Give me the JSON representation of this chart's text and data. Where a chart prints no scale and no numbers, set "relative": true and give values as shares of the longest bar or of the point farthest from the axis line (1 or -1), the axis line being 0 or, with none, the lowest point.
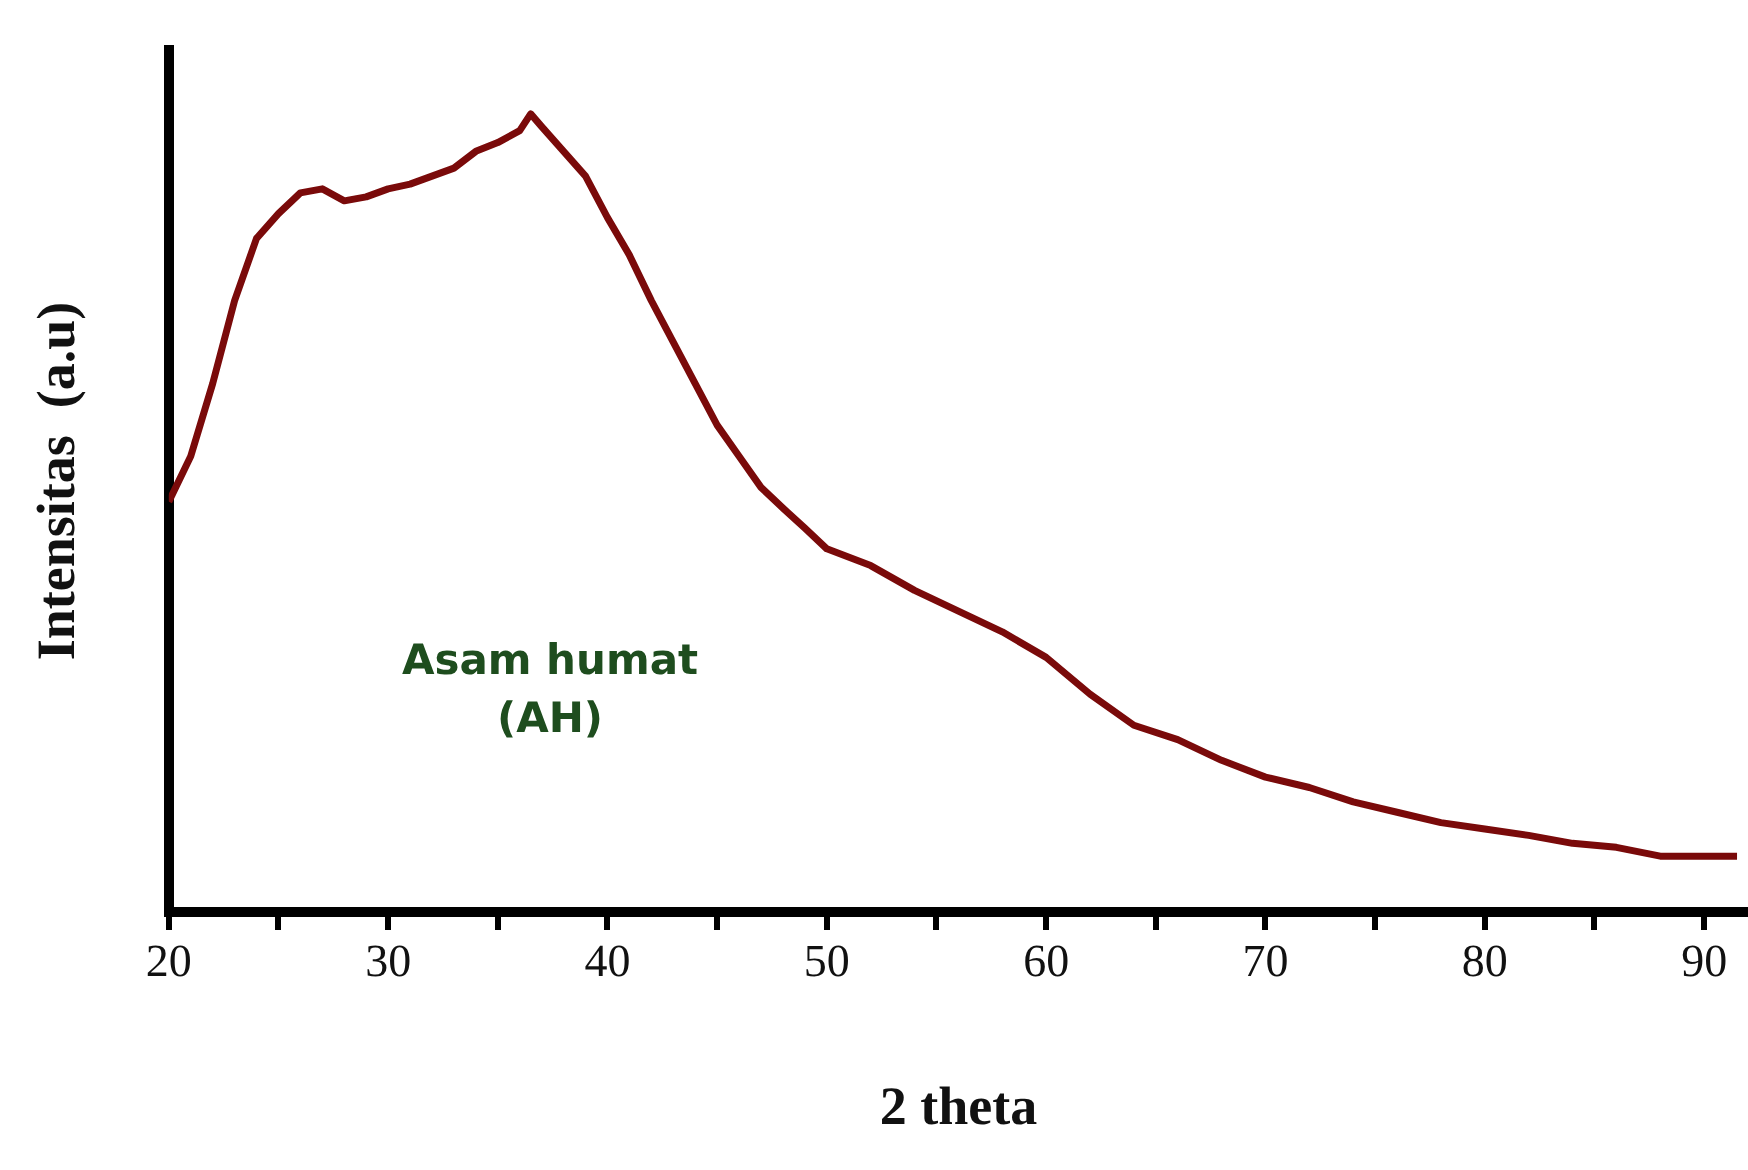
{
  "chart_data": {
    "type": "line",
    "relative": true,
    "xlabel": "2 theta",
    "ylabel": "Intensitas  (a.u)",
    "annotations": [
      "Asam humat\n(AH)"
    ],
    "xlim": [
      20,
      92
    ],
    "xticks": [
      20,
      {
        "value": 25,
        "label": null
      },
      30,
      {
        "value": 35,
        "label": null
      },
      40,
      {
        "value": 45,
        "label": null
      },
      50,
      {
        "value": 55,
        "label": null
      },
      60,
      {
        "value": 65,
        "label": null
      },
      70,
      {
        "value": 75,
        "label": null
      },
      80,
      {
        "value": 85,
        "label": null
      },
      90
    ],
    "grid": false,
    "legend": false,
    "marker": "none",
    "line_style": "solid",
    "series": [
      {
        "color": "#7a0a0a",
        "x": [
          20,
          21,
          22,
          23,
          24,
          25,
          26,
          27,
          28,
          29,
          30,
          31,
          32,
          33,
          34,
          35,
          36,
          36.5,
          37,
          38,
          39,
          40,
          41,
          42,
          43,
          44,
          45,
          46,
          47,
          48,
          49,
          50,
          52,
          54,
          56,
          58,
          60,
          62,
          64,
          66,
          68,
          70,
          72,
          74,
          76,
          78,
          80,
          82,
          84,
          86,
          88,
          90,
          91.5
        ],
        "values": [
          0.514,
          0.571,
          0.662,
          0.766,
          0.844,
          0.875,
          0.901,
          0.906,
          0.891,
          0.896,
          0.906,
          0.912,
          0.922,
          0.932,
          0.953,
          0.964,
          0.979,
          1,
          0.984,
          0.953,
          0.922,
          0.87,
          0.823,
          0.766,
          0.714,
          0.662,
          0.61,
          0.571,
          0.532,
          0.506,
          0.481,
          0.455,
          0.434,
          0.403,
          0.377,
          0.351,
          0.319,
          0.273,
          0.234,
          0.216,
          0.19,
          0.169,
          0.156,
          0.138,
          0.125,
          0.112,
          0.104,
          0.096,
          0.086,
          0.081,
          0.07,
          0.07,
          0.07
        ]
      }
    ]
  }
}
